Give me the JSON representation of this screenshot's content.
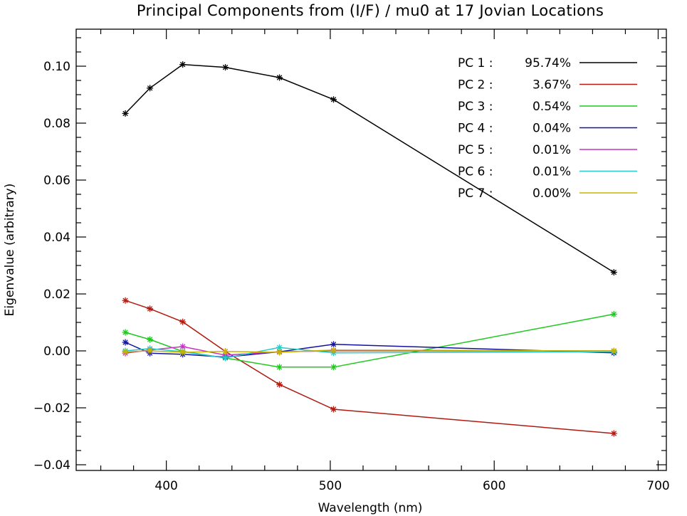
{
  "chart_data": {
    "type": "line",
    "title": "Principal Components from (I/F) / mu0 at 17 Jovian Locations",
    "xlabel": "Wavelength (nm)",
    "ylabel": "Eigenvalue (arbitrary)",
    "xlim": [
      345,
      705
    ],
    "ylim": [
      -0.042,
      0.113
    ],
    "xticks": [
      400,
      500,
      600,
      700
    ],
    "xtick_labels": [
      "400",
      "500",
      "600",
      "700"
    ],
    "yticks": [
      -0.04,
      -0.02,
      0.0,
      0.02,
      0.04,
      0.06,
      0.08,
      0.1
    ],
    "ytick_labels": [
      "−0.04",
      "−0.02",
      "0.00",
      "0.02",
      "0.04",
      "0.06",
      "0.08",
      "0.10"
    ],
    "legend_position": "top-right",
    "grid": false,
    "marker": "asterisk",
    "x": [
      375,
      390,
      410,
      436,
      469,
      502,
      673
    ],
    "series": [
      {
        "name": "PC 1",
        "label_prefix": "PC 1 :",
        "percent": "95.74%",
        "color": "#000000",
        "values": [
          0.0834,
          0.0923,
          0.1006,
          0.0996,
          0.096,
          0.0883,
          0.0276
        ]
      },
      {
        "name": "PC 2",
        "label_prefix": "PC 2 :",
        "percent": "3.67%",
        "color": "#b01a10",
        "values": [
          0.0177,
          0.0148,
          0.0102,
          -0.0002,
          -0.0118,
          -0.0205,
          -0.029
        ]
      },
      {
        "name": "PC 3",
        "label_prefix": "PC 3 :",
        "percent": "0.54%",
        "color": "#1ec81e",
        "values": [
          0.0065,
          0.004,
          -0.0002,
          -0.0025,
          -0.0057,
          -0.0057,
          0.0129
        ]
      },
      {
        "name": "PC 4",
        "label_prefix": "PC 4 :",
        "percent": "0.04%",
        "color": "#1212a0",
        "values": [
          0.003,
          -0.0008,
          -0.0012,
          -0.0022,
          -0.0003,
          0.0023,
          -0.0007
        ]
      },
      {
        "name": "PC 5",
        "label_prefix": "PC 5 :",
        "percent": "0.01%",
        "color": "#c832c8",
        "values": [
          -0.0008,
          0.0003,
          0.0015,
          -0.0015,
          -0.0003,
          0.0,
          0.0
        ]
      },
      {
        "name": "PC 6",
        "label_prefix": "PC 6 :",
        "percent": "0.01%",
        "color": "#2ac8c8",
        "values": [
          0.0,
          0.0008,
          -0.0003,
          -0.0025,
          0.0012,
          -0.0007,
          -0.0003
        ]
      },
      {
        "name": "PC 7",
        "label_prefix": "PC 7 :",
        "percent": "0.00%",
        "color": "#c8b400",
        "values": [
          -0.0003,
          0.0,
          -0.0005,
          -0.0002,
          -0.0005,
          0.0003,
          0.0
        ]
      }
    ]
  }
}
